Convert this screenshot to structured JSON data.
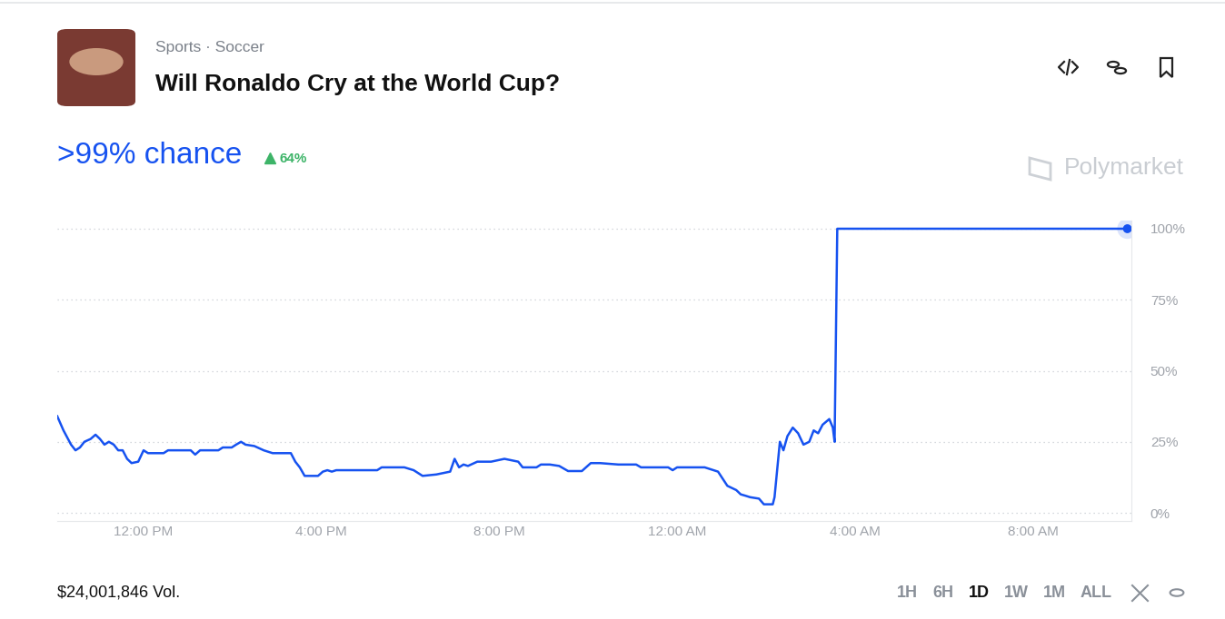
{
  "header": {
    "category": "Sports · Soccer",
    "chance": ">99% chance",
    "change": "64%"
  },
  "brand": "Polymarket",
  "footer": {
    "volume": "$24,001,846 Vol.",
    "ranges": [
      "1H",
      "6H",
      "1D",
      "1W",
      "1M",
      "ALL"
    ],
    "selected": "1D"
  },
  "chart_data": {
    "type": "line",
    "title": "Will Ronaldo Cry at the World Cup?",
    "color": "#1652f0",
    "grid": true,
    "x": [
      10.06,
      10.2,
      10.37,
      10.47,
      10.57,
      10.67,
      10.81,
      10.92,
      11.02,
      11.12,
      11.22,
      11.33,
      11.43,
      11.53,
      11.63,
      11.73,
      11.88,
      12.0,
      12.1,
      12.45,
      12.55,
      13.06,
      13.16,
      13.27,
      13.68,
      13.78,
      13.98,
      14.08,
      14.19,
      14.29,
      14.49,
      14.7,
      14.9,
      15.31,
      15.41,
      15.51,
      15.62,
      15.92,
      16.03,
      16.13,
      16.23,
      16.33,
      16.54,
      17.25,
      17.35,
      17.86,
      18.07,
      18.27,
      18.58,
      18.89,
      18.99,
      19.09,
      19.19,
      19.29,
      19.5,
      19.81,
      20.11,
      20.42,
      20.52,
      20.83,
      20.93,
      21.13,
      21.34,
      21.54,
      21.85,
      22.05,
      22.26,
      22.67,
      23.07,
      23.18,
      23.79,
      23.89,
      23.99,
      24.61,
      24.91,
      25.12,
      25.32,
      25.42,
      25.53,
      25.63,
      25.83,
      25.94,
      26.14,
      26.18,
      26.3,
      26.38,
      26.47,
      26.59,
      26.71,
      26.83,
      26.96,
      27.06,
      27.16,
      27.26,
      27.41,
      27.49,
      27.53,
      27.59,
      34.11
    ],
    "values": [
      34,
      29,
      24,
      22,
      23,
      25,
      26,
      27.5,
      26,
      24,
      25,
      24,
      22,
      22,
      19,
      17.5,
      18,
      22,
      21,
      21,
      22,
      22,
      20.5,
      22,
      22,
      23,
      23,
      24,
      25,
      24,
      23.5,
      22,
      21,
      21,
      18,
      16,
      13,
      13,
      14.5,
      15,
      14.5,
      15,
      15,
      15,
      16,
      16,
      15,
      13,
      13.5,
      14.5,
      19,
      16,
      17,
      16.5,
      18,
      18,
      19,
      18,
      16,
      16,
      17,
      17,
      16.5,
      14.7,
      14.7,
      17.5,
      17.5,
      17,
      17,
      16,
      16,
      15,
      16,
      16,
      14.5,
      9.5,
      8,
      6.5,
      6,
      5.5,
      5,
      3,
      3,
      5.5,
      25,
      22,
      27,
      30,
      28,
      24,
      25,
      29,
      28,
      31,
      33,
      30,
      25,
      100,
      100
    ],
    "xlim": [
      10.06,
      34.2
    ],
    "xticks": [
      {
        "value": 12,
        "label": "12:00 PM"
      },
      {
        "value": 16,
        "label": "4:00 PM"
      },
      {
        "value": 20,
        "label": "8:00 PM"
      },
      {
        "value": 24,
        "label": "12:00 AM"
      },
      {
        "value": 28,
        "label": "4:00 AM"
      },
      {
        "value": 32,
        "label": "8:00 AM"
      }
    ],
    "ylim": [
      -3,
      103
    ],
    "yticks": [
      {
        "value": 0,
        "label": "0%"
      },
      {
        "value": 25,
        "label": "25%"
      },
      {
        "value": 50,
        "label": "50%"
      },
      {
        "value": 75,
        "label": "75%"
      },
      {
        "value": 100,
        "label": "100%"
      }
    ]
  }
}
